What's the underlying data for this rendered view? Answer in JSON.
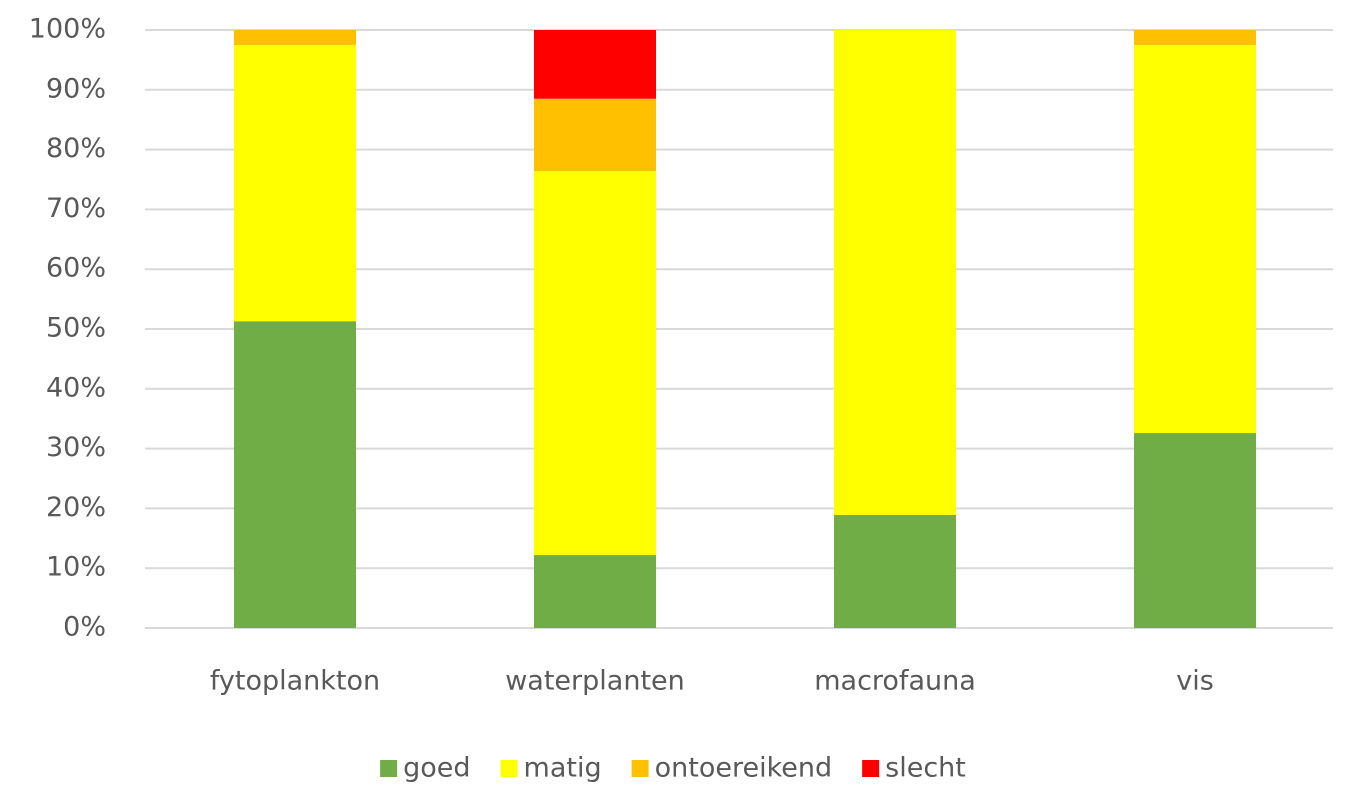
{
  "chart_data": {
    "type": "stacked-bar",
    "categories": [
      "fytoplankton",
      "waterplanten",
      "macrofauna",
      "vis"
    ],
    "series": [
      {
        "name": "goed",
        "color": "#70ad47",
        "values": [
          51.3,
          12.2,
          18.9,
          32.6
        ]
      },
      {
        "name": "matig",
        "color": "#ffff00",
        "values": [
          46.2,
          64.2,
          81.1,
          64.9
        ]
      },
      {
        "name": "ontoereikend",
        "color": "#ffc000",
        "values": [
          2.5,
          12.1,
          0,
          2.5
        ]
      },
      {
        "name": "slecht",
        "color": "#ff0000",
        "values": [
          0,
          11.5,
          0,
          0
        ]
      }
    ],
    "ylim": [
      0,
      100
    ],
    "yticks": [
      {
        "value": 0,
        "label": "0%"
      },
      {
        "value": 10,
        "label": "10%"
      },
      {
        "value": 20,
        "label": "20%"
      },
      {
        "value": 30,
        "label": "30%"
      },
      {
        "value": 40,
        "label": "40%"
      },
      {
        "value": 50,
        "label": "50%"
      },
      {
        "value": 60,
        "label": "60%"
      },
      {
        "value": 70,
        "label": "70%"
      },
      {
        "value": 80,
        "label": "80%"
      },
      {
        "value": 90,
        "label": "90%"
      },
      {
        "value": 100,
        "label": "100%"
      }
    ],
    "grid": true,
    "legend": "bottom"
  }
}
